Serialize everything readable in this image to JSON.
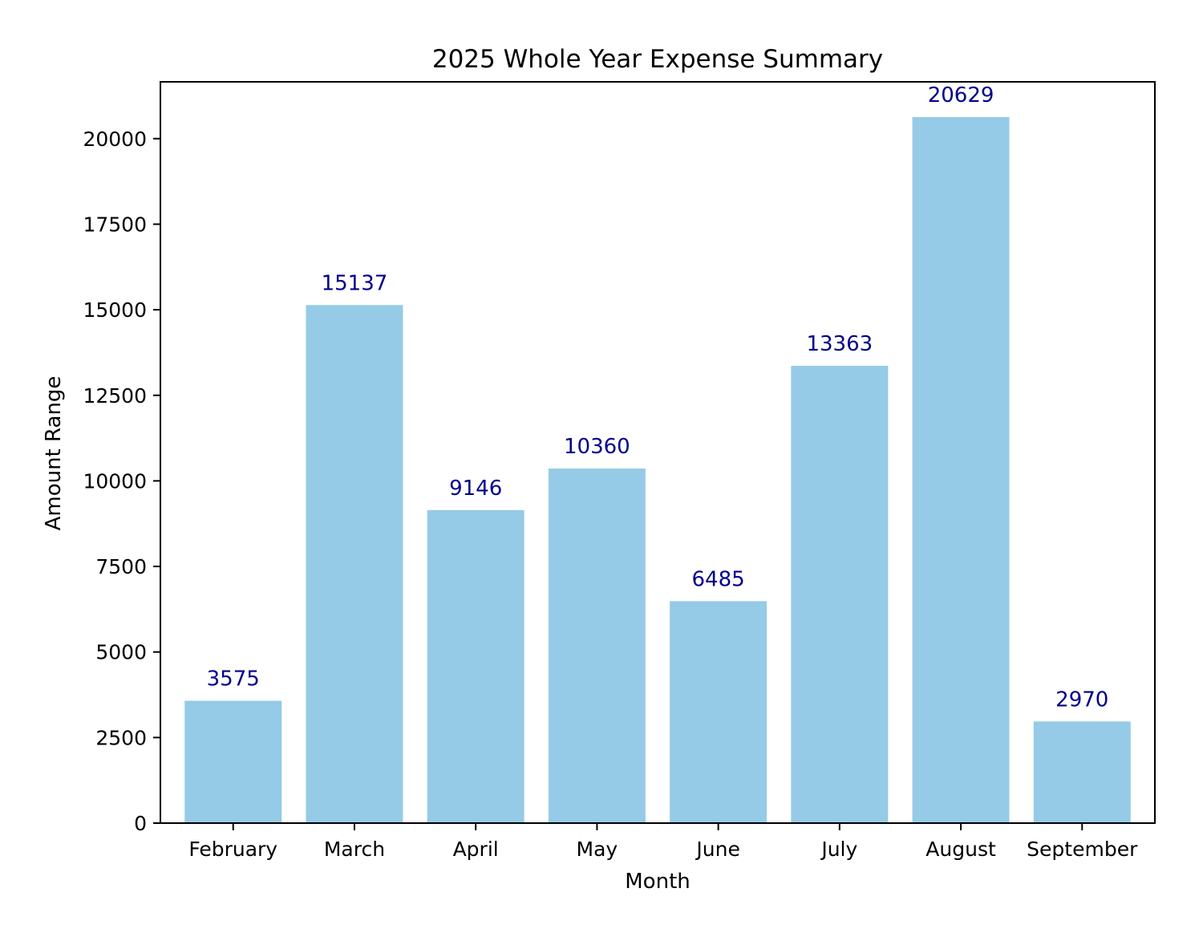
{
  "chart_data": {
    "type": "bar",
    "title": "2025 Whole Year Expense Summary",
    "xlabel": "Month",
    "ylabel": "Amount Range",
    "categories": [
      "February",
      "March",
      "April",
      "May",
      "June",
      "July",
      "August",
      "September"
    ],
    "values": [
      3575,
      15137,
      9146,
      10360,
      6485,
      13363,
      20629,
      2970
    ],
    "ylim": [
      0,
      21660
    ],
    "yticks": [
      0,
      2500,
      5000,
      7500,
      10000,
      12500,
      15000,
      17500,
      20000
    ],
    "ytick_labels": [
      "0",
      "2500",
      "5000",
      "7500",
      "10000",
      "12500",
      "15000",
      "17500",
      "20000"
    ],
    "data_labels": [
      "3575",
      "15137",
      "9146",
      "10360",
      "6485",
      "13363",
      "20629",
      "2970"
    ],
    "grid": false,
    "legend": "none",
    "colors": {
      "bar": "#95cbe6",
      "data_label": "#00008b",
      "text": "#000000",
      "axis": "#000000"
    }
  }
}
